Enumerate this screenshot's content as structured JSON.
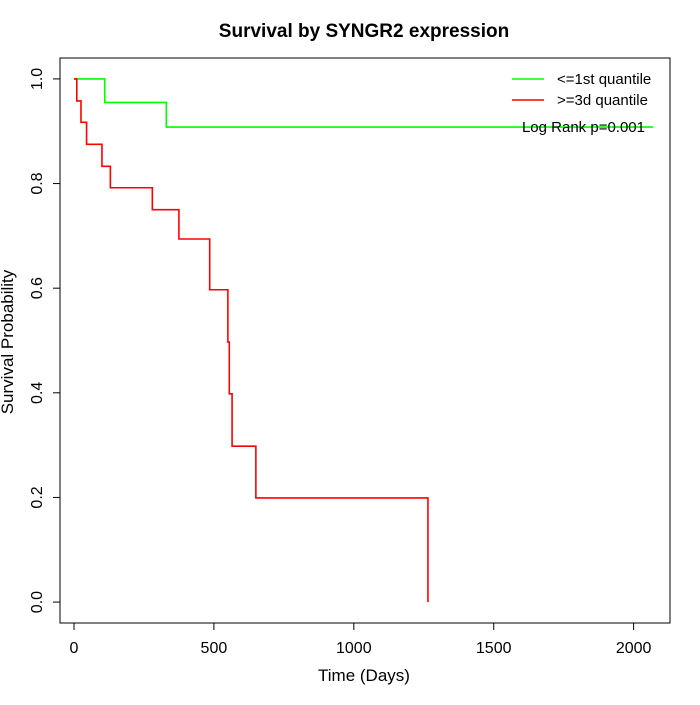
{
  "chart_data": {
    "type": "line",
    "title": "Survival by SYNGR2 expression",
    "xlabel": "Time (Days)",
    "ylabel": "Survival Probability",
    "xlim": [
      -50,
      2130
    ],
    "ylim": [
      -0.04,
      1.04
    ],
    "x_ticks": [
      0,
      500,
      1000,
      1500,
      2000
    ],
    "y_ticks": [
      0.0,
      0.2,
      0.4,
      0.6,
      0.8,
      1.0
    ],
    "x_tick_labels": [
      "0",
      "500",
      "1000",
      "1500",
      "2000"
    ],
    "y_tick_labels": [
      "0.0",
      "0.2",
      "0.4",
      "0.6",
      "0.8",
      "1.0"
    ],
    "grid": false,
    "legend_position": "top-right",
    "annotation": "Log Rank p=0.001",
    "series": [
      {
        "name": "<=1st quantile",
        "color": "#00ff00",
        "step": true,
        "x": [
          0,
          110,
          330,
          2070
        ],
        "y": [
          1.0,
          0.955,
          0.908,
          0.908
        ]
      },
      {
        "name": ">=3d quantile",
        "color": "#ff0000",
        "step": true,
        "x": [
          0,
          10,
          25,
          45,
          100,
          130,
          280,
          375,
          485,
          550,
          555,
          565,
          650,
          1265,
          1265
        ],
        "y": [
          1.0,
          0.958,
          0.917,
          0.875,
          0.833,
          0.792,
          0.75,
          0.694,
          0.597,
          0.497,
          0.398,
          0.298,
          0.199,
          0.199,
          0.0
        ]
      }
    ]
  }
}
